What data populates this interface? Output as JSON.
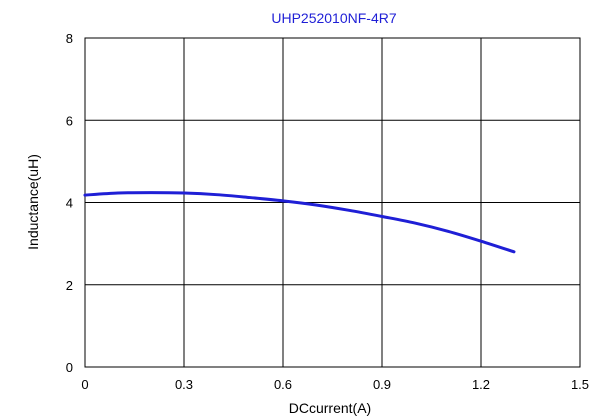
{
  "chart_data": {
    "type": "line",
    "title": "UHP252010NF-4R7",
    "xlabel": "DCcurrent(A)",
    "ylabel": "Inductance(uH)",
    "xlim": [
      0,
      1.5
    ],
    "ylim": [
      0,
      8
    ],
    "x_ticks": [
      "0",
      "0.3",
      "0.6",
      "0.9",
      "1.2",
      "1.5"
    ],
    "y_ticks": [
      "0",
      "2",
      "4",
      "6",
      "8"
    ],
    "grid": true,
    "series": [
      {
        "color": "#1f1fd6",
        "x": [
          0,
          0.1,
          0.2,
          0.3,
          0.4,
          0.5,
          0.6,
          0.7,
          0.8,
          0.9,
          1.0,
          1.1,
          1.2,
          1.3
        ],
        "y": [
          4.18,
          4.23,
          4.24,
          4.23,
          4.19,
          4.12,
          4.04,
          3.94,
          3.81,
          3.66,
          3.5,
          3.3,
          3.06,
          2.8
        ]
      }
    ]
  }
}
